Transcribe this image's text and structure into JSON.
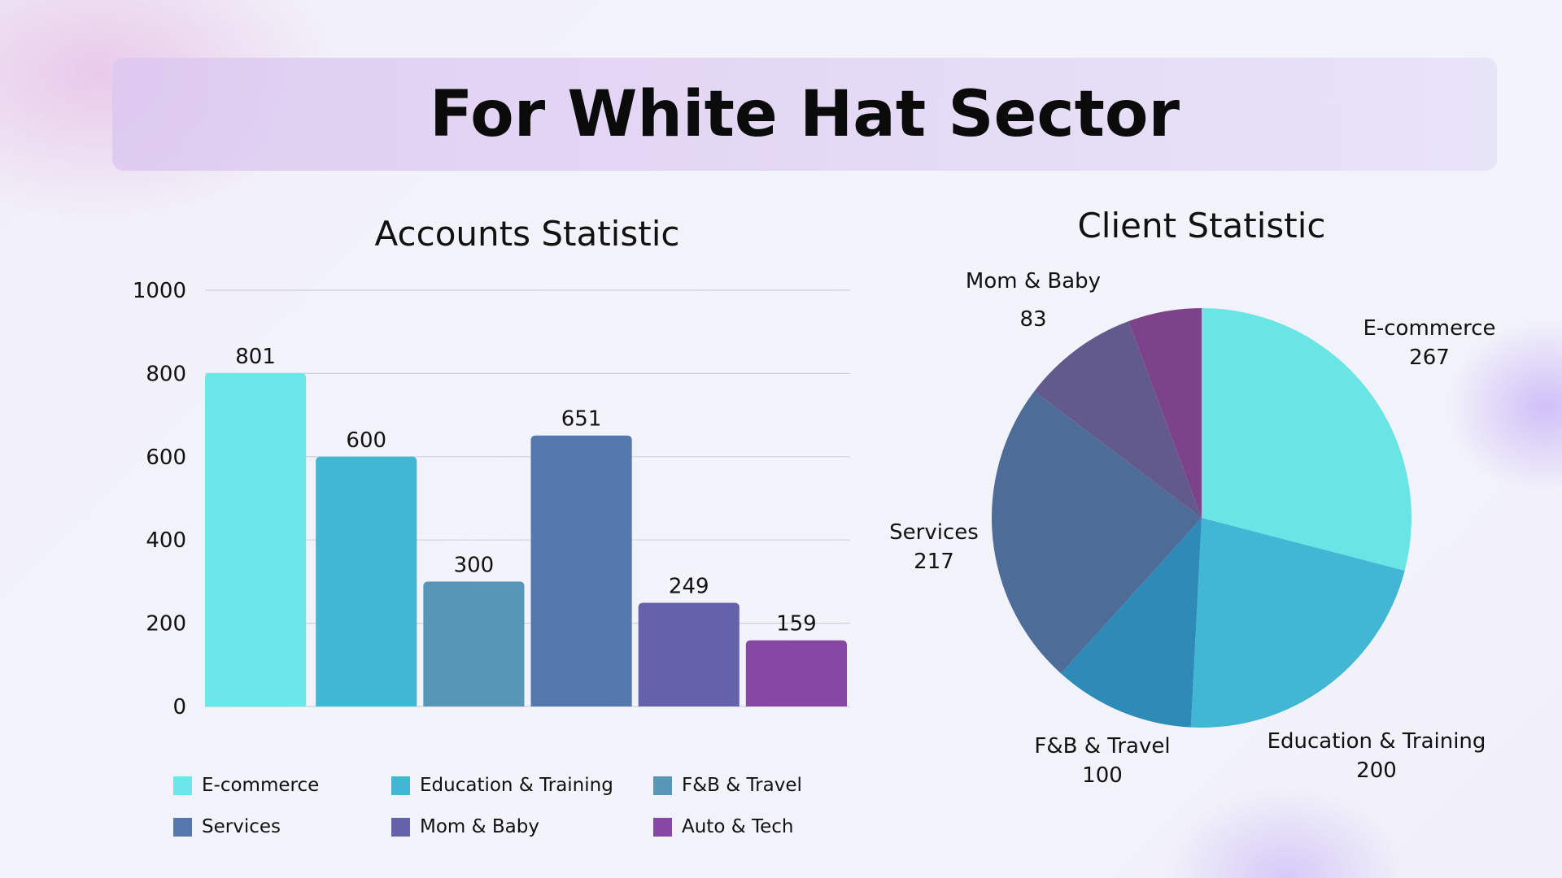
{
  "title": "For White Hat Sector",
  "chart_data": [
    {
      "type": "bar",
      "title": "Accounts Statistic",
      "categories": [
        "E-commerce",
        "Education & Training",
        "F&B & Travel",
        "Services",
        "Mom & Baby",
        "Auto & Tech"
      ],
      "values": [
        801,
        600,
        300,
        651,
        249,
        159
      ],
      "colors": [
        "#6ce6e8",
        "#42b7d3",
        "#5896b8",
        "#5478ad",
        "#6561ab",
        "#8647a5"
      ],
      "ylim": [
        0,
        1000
      ],
      "yticks": [
        0,
        200,
        400,
        600,
        800,
        1000
      ],
      "grid": true,
      "legend": "bottom",
      "data_labels": true
    },
    {
      "type": "pie",
      "title": "Client Statistic",
      "categories": [
        "E-commerce",
        "Education & Training",
        "F&B & Travel",
        "Services",
        "Mom & Baby",
        "Auto & Tech"
      ],
      "values": [
        267,
        200,
        100,
        217,
        83,
        52
      ],
      "labels_shown": [
        true,
        true,
        true,
        true,
        true,
        false
      ],
      "colors": [
        "#6ae5e6",
        "#42b7d3",
        "#2e8bb7",
        "#4e6c98",
        "#625a8d",
        "#7d4388"
      ]
    }
  ]
}
